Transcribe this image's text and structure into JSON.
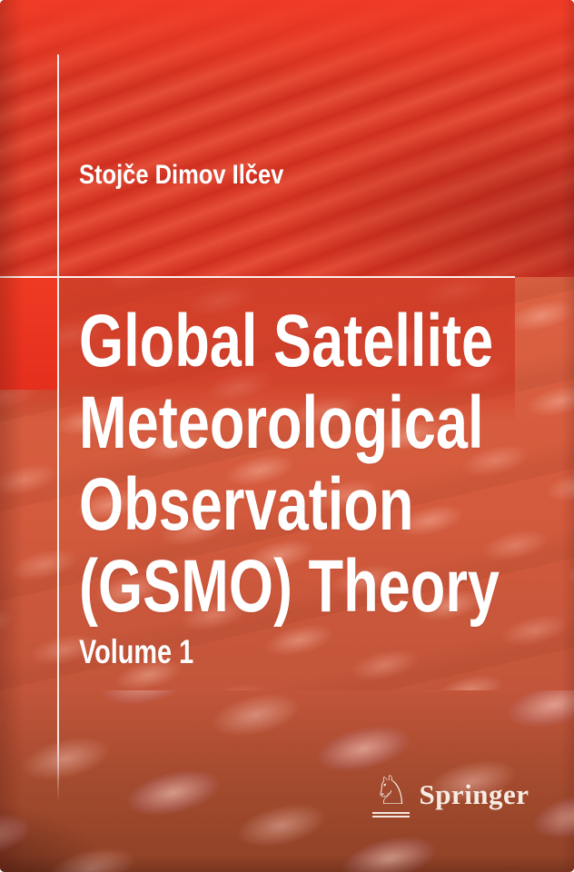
{
  "book": {
    "author": "Stojče Dimov Ilčev",
    "title": "Global Satellite Meteorological Observation (GSMO) Theory",
    "title_lines": [
      "Global Satellite",
      "Meteorological",
      "Observation",
      "(GSMO) Theory"
    ],
    "volume": "Volume 1"
  },
  "publisher": {
    "name": "Springer",
    "logo_icon": "chess-knight-icon",
    "logo_glyph": "♘"
  },
  "colors": {
    "background_red": "#dc3826",
    "panel_orange": "#d7583b",
    "accent_block": "#ef3a23",
    "bottom_brown": "#8e4126",
    "line_white": "#ffffff",
    "text_white": "#ffffff"
  }
}
